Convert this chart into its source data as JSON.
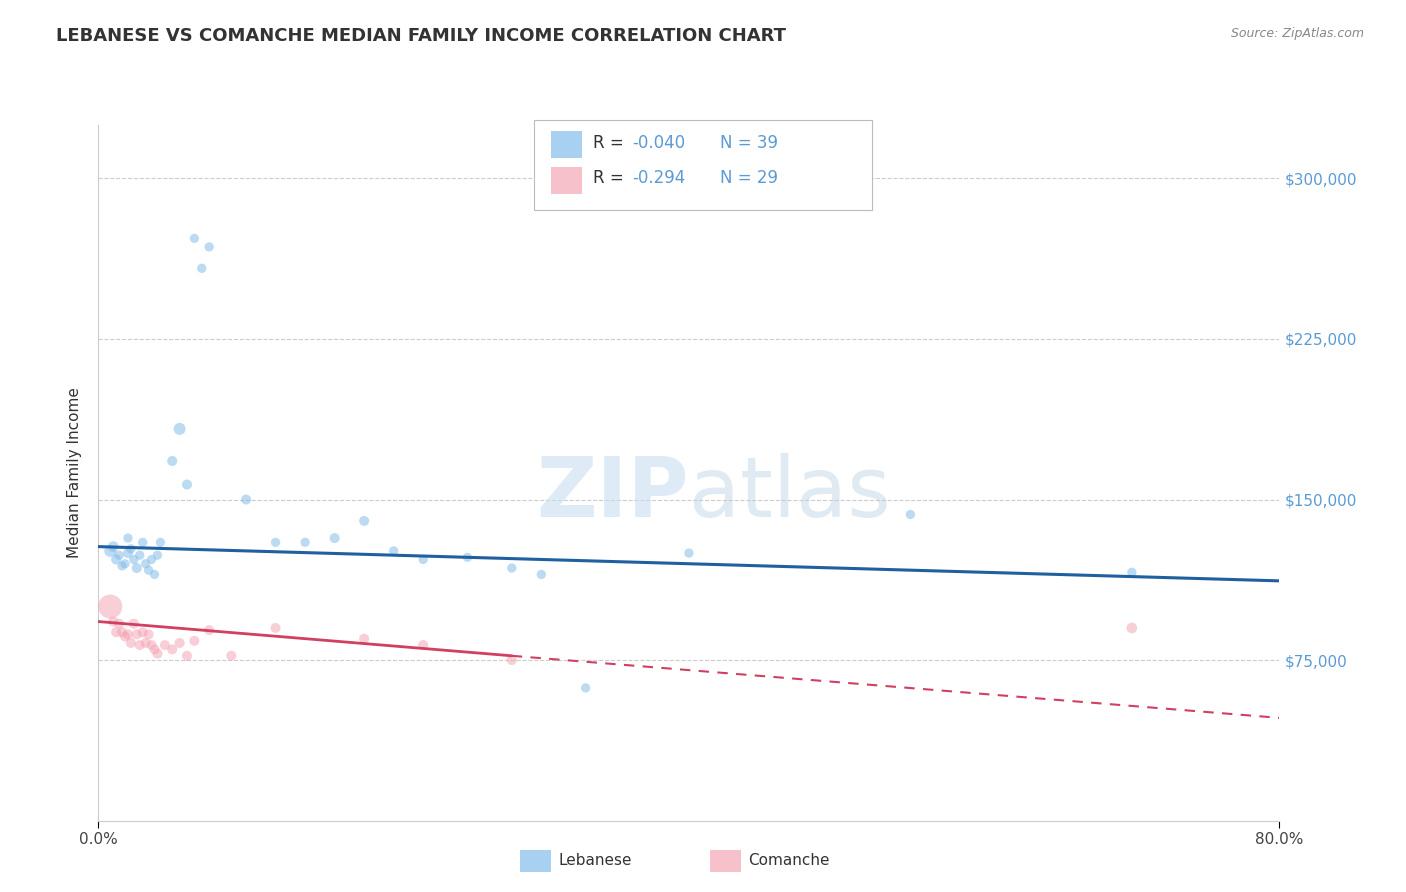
{
  "title": "LEBANESE VS COMANCHE MEDIAN FAMILY INCOME CORRELATION CHART",
  "source_text": "Source: ZipAtlas.com",
  "ylabel": "Median Family Income",
  "xlim": [
    0.0,
    80.0
  ],
  "ylim": [
    0,
    325000
  ],
  "yticks": [
    75000,
    150000,
    225000,
    300000
  ],
  "ytick_labels": [
    "$75,000",
    "$150,000",
    "$225,000",
    "$300,000"
  ],
  "blue_color": "#7ab8e8",
  "pink_color": "#f4a0b0",
  "blue_line_color": "#2060a0",
  "pink_line_color": "#d04060",
  "watermark_zip": "ZIP",
  "watermark_atlas": "atlas",
  "background_color": "#ffffff",
  "grid_color": "#cccccc",
  "legend_r1": "R =  -0.040",
  "legend_n1": "N = 39",
  "legend_r2": "R =  -0.294",
  "legend_n2": "N = 29",
  "lebanese_x": [
    0.8,
    1.0,
    1.2,
    1.4,
    1.6,
    1.8,
    2.0,
    2.0,
    2.2,
    2.4,
    2.6,
    2.8,
    3.0,
    3.2,
    3.4,
    3.6,
    3.8,
    4.0,
    4.2,
    5.0,
    5.5,
    6.0,
    6.5,
    7.0,
    7.5,
    10.0,
    12.0,
    14.0,
    16.0,
    18.0,
    20.0,
    22.0,
    25.0,
    28.0,
    30.0,
    33.0,
    40.0,
    55.0,
    70.0
  ],
  "lebanese_y": [
    126000,
    128000,
    122000,
    124000,
    119000,
    120000,
    125000,
    132000,
    127000,
    122000,
    118000,
    124000,
    130000,
    120000,
    117000,
    122000,
    115000,
    124000,
    130000,
    168000,
    183000,
    157000,
    272000,
    258000,
    268000,
    150000,
    130000,
    130000,
    132000,
    140000,
    126000,
    122000,
    123000,
    118000,
    115000,
    62000,
    125000,
    143000,
    116000
  ],
  "lebanese_size": [
    50,
    40,
    35,
    30,
    30,
    30,
    35,
    30,
    30,
    30,
    35,
    30,
    30,
    30,
    30,
    30,
    30,
    30,
    30,
    35,
    50,
    35,
    30,
    30,
    30,
    35,
    30,
    30,
    35,
    35,
    30,
    30,
    30,
    30,
    30,
    30,
    30,
    30,
    30
  ],
  "comanche_x": [
    0.8,
    1.0,
    1.2,
    1.4,
    1.6,
    1.8,
    2.0,
    2.2,
    2.4,
    2.6,
    2.8,
    3.0,
    3.2,
    3.4,
    3.6,
    3.8,
    4.0,
    4.5,
    5.0,
    5.5,
    6.0,
    6.5,
    7.5,
    9.0,
    12.0,
    18.0,
    22.0,
    28.0,
    70.0
  ],
  "comanche_y": [
    100000,
    93000,
    88000,
    92000,
    88000,
    86000,
    87000,
    83000,
    92000,
    87000,
    82000,
    88000,
    83000,
    87000,
    82000,
    80000,
    78000,
    82000,
    80000,
    83000,
    77000,
    84000,
    89000,
    77000,
    90000,
    85000,
    82000,
    75000,
    90000
  ],
  "comanche_size": [
    200,
    35,
    35,
    35,
    35,
    35,
    35,
    35,
    35,
    35,
    35,
    35,
    35,
    35,
    35,
    35,
    35,
    35,
    35,
    35,
    35,
    35,
    35,
    35,
    35,
    35,
    35,
    35,
    40
  ],
  "lb_trend_x0": 0.0,
  "lb_trend_x1": 80.0,
  "lb_trend_y0": 128000,
  "lb_trend_y1": 112000,
  "cm_trend_x0": 0.0,
  "cm_trend_x1": 28.0,
  "cm_trend_y0": 93000,
  "cm_trend_y1": 77000,
  "cm_dash_x0": 28.0,
  "cm_dash_x1": 80.0,
  "cm_dash_y0": 77000,
  "cm_dash_y1": 48000
}
